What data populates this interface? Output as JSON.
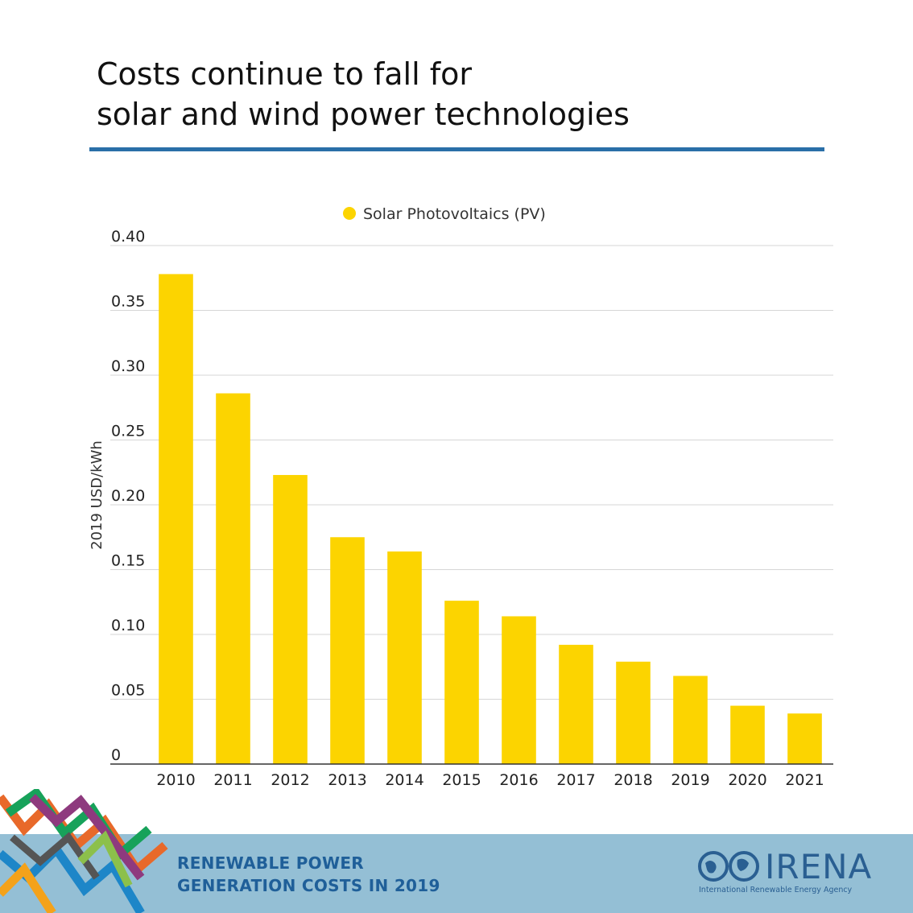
{
  "title": {
    "line1": "Costs continue to fall for",
    "line2": "solar and wind power technologies"
  },
  "chart_data": {
    "type": "bar",
    "categories": [
      "2010",
      "2011",
      "2012",
      "2013",
      "2014",
      "2015",
      "2016",
      "2017",
      "2018",
      "2019",
      "2020",
      "2021"
    ],
    "series": [
      {
        "name": "Solar Photovoltaics (PV)",
        "color": "#fcd400",
        "values": [
          0.378,
          0.286,
          0.223,
          0.175,
          0.164,
          0.126,
          0.114,
          0.092,
          0.079,
          0.068,
          0.045,
          0.039
        ]
      }
    ],
    "ylabel": "2019 USD/kWh",
    "xlabel": "",
    "ylim": [
      0,
      0.4
    ],
    "yticks": [
      "0",
      "0.05",
      "0.10",
      "0.15",
      "0.20",
      "0.25",
      "0.30",
      "0.35",
      "0.40"
    ],
    "grid": true,
    "legend_position": "top-center"
  },
  "footer": {
    "line1": "RENEWABLE POWER",
    "line2": "GENERATION COSTS IN 2019",
    "logo_wordmark": "IRENA",
    "logo_tagline": "International Renewable Energy Agency"
  },
  "colors": {
    "accent_rule": "#2a6fa8",
    "footer_band": "#94bfd5",
    "footer_text": "#1f5f99",
    "bar": "#fcd400"
  }
}
